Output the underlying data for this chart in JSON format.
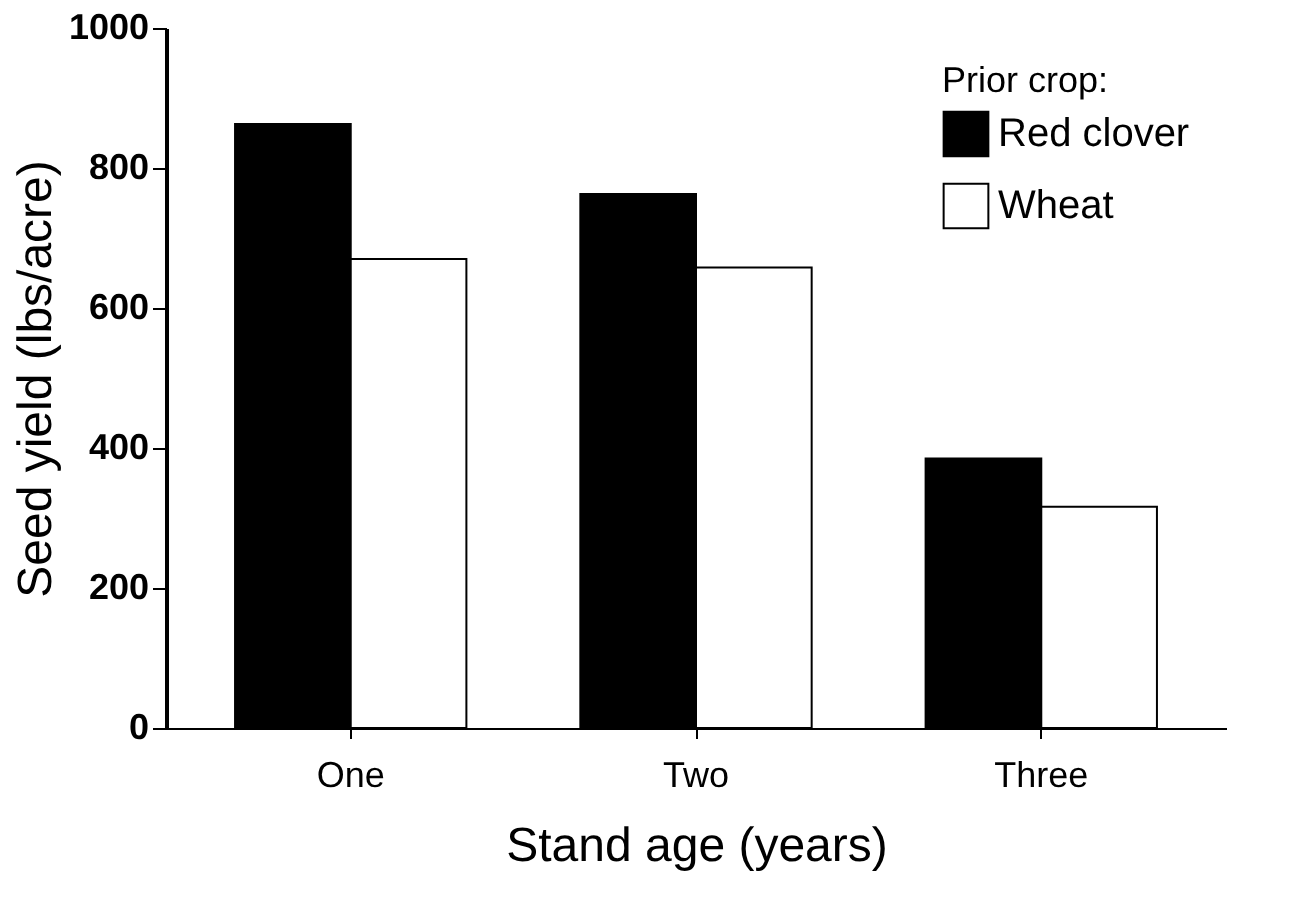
{
  "chart_data": {
    "type": "bar",
    "xlabel": "Stand age (years)",
    "ylabel": "Seed yield (lbs/acre)",
    "legend_title": "Prior crop:",
    "categories": [
      "One",
      "Two",
      "Three"
    ],
    "series": [
      {
        "name": "Red clover",
        "color": "#000000",
        "values": [
          863,
          763,
          385
        ]
      },
      {
        "name": "Wheat",
        "color": "#ffffff",
        "values": [
          670,
          658,
          316
        ]
      }
    ],
    "ylim": [
      0,
      1000
    ],
    "yticks": [
      0,
      200,
      400,
      600,
      800,
      1000
    ],
    "grid": false,
    "legend": "top right"
  }
}
